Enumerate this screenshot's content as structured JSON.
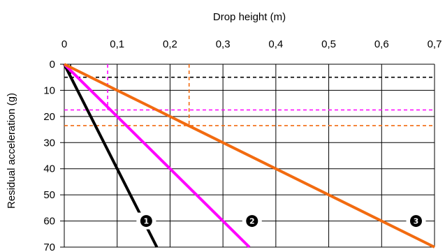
{
  "chart_data": {
    "type": "line",
    "xlabel": "Drop height (m)",
    "ylabel": "Residual acceleration (g)",
    "x_ticks": [
      "0",
      "0,1",
      "0,2",
      "0,3",
      "0,4",
      "0,5",
      "0,6",
      "0,7"
    ],
    "y_ticks": [
      "0",
      "10",
      "20",
      "30",
      "40",
      "50",
      "60",
      "70"
    ],
    "xlim": [
      0,
      0.7
    ],
    "ylim": [
      0,
      70
    ],
    "y_inverted": true,
    "x_axis_position": "top",
    "grid": true,
    "series": [
      {
        "marker": "❶",
        "color": "#000000",
        "points": [
          [
            0,
            0
          ],
          [
            0.175,
            70
          ]
        ],
        "marker_at": [
          0.155,
          60
        ]
      },
      {
        "marker": "❷",
        "color": "#ff00ff",
        "points": [
          [
            0,
            0
          ],
          [
            0.35,
            70
          ]
        ],
        "marker_at": [
          0.355,
          60
        ]
      },
      {
        "marker": "❸",
        "color": "#f26b10",
        "points": [
          [
            0,
            0
          ],
          [
            0.7,
            70
          ]
        ],
        "marker_at": [
          0.665,
          60
        ]
      }
    ],
    "reference_lines": [
      {
        "color": "#000000",
        "y": 5,
        "x_drop": 0.012
      },
      {
        "color": "#ff00ff",
        "y": 17.5,
        "x_drop": 0.082
      },
      {
        "color": "#f26b10",
        "y": 23.5,
        "x_drop": 0.236
      }
    ]
  }
}
